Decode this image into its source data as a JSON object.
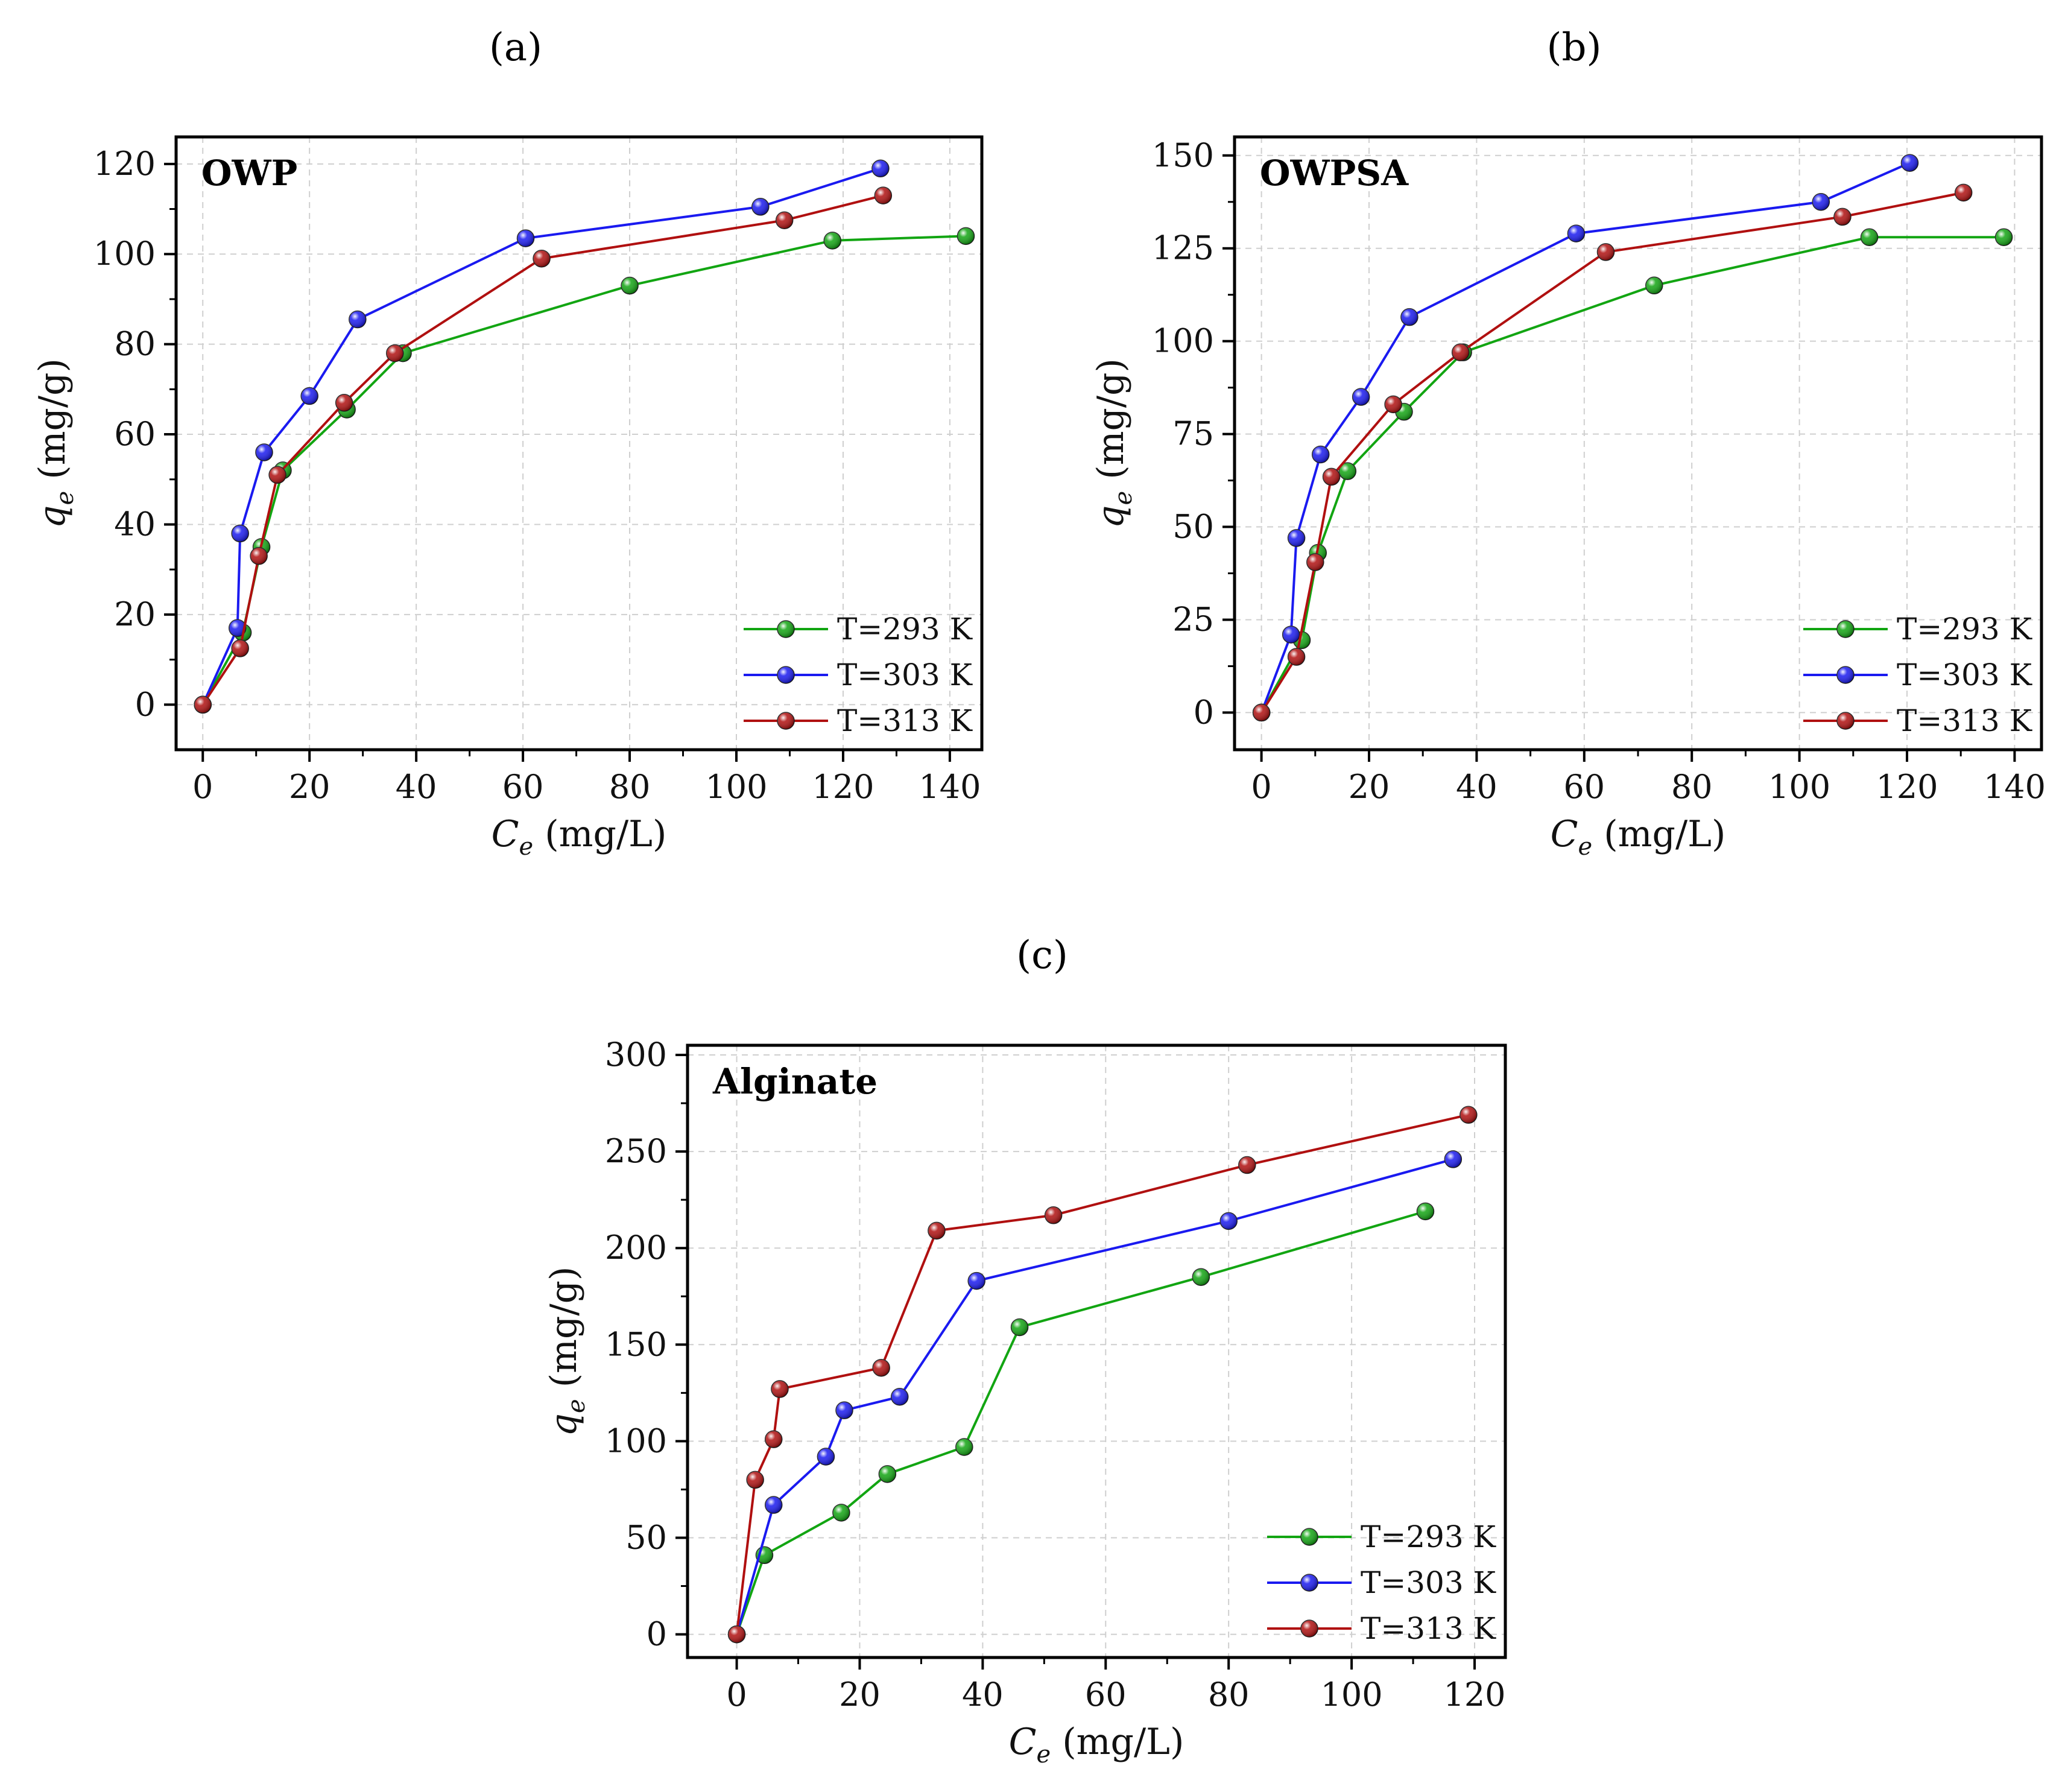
{
  "chart_data": [
    {
      "type": "line",
      "panel_label": "(a)",
      "title": "OWP",
      "xlabel_main": "C",
      "xlabel_sub": "e",
      "xlabel_unit": " (mg/L)",
      "ylabel_main": "q",
      "ylabel_sub": "e",
      "ylabel_unit": " (mg/g)",
      "xlim": [
        -5,
        146
      ],
      "ylim": [
        -10,
        126
      ],
      "xticks": [
        0,
        20,
        40,
        60,
        80,
        100,
        120,
        140
      ],
      "yticks": [
        0,
        20,
        40,
        60,
        80,
        100,
        120
      ],
      "legend_position": "bottom-right",
      "series": [
        {
          "name": "T=293 K",
          "color": "#12a512",
          "x": [
            0,
            7.5,
            11,
            15,
            27,
            37.5,
            80,
            118,
            143
          ],
          "y": [
            0,
            16,
            35,
            52,
            65.5,
            78,
            93,
            103,
            104
          ]
        },
        {
          "name": "T=303 K",
          "color": "#1a1af0",
          "x": [
            0,
            6.5,
            7,
            11.5,
            20,
            29,
            60.5,
            104.5,
            127
          ],
          "y": [
            0,
            17,
            38,
            56,
            68.5,
            85.5,
            103.5,
            110.5,
            119
          ]
        },
        {
          "name": "T=313 K",
          "color": "#b01010",
          "x": [
            0,
            7,
            10.5,
            14,
            26.5,
            36,
            63.5,
            109,
            127.5
          ],
          "y": [
            0,
            12.5,
            33,
            51,
            67,
            78,
            99,
            107.5,
            113
          ]
        }
      ]
    },
    {
      "type": "line",
      "panel_label": "(b)",
      "title": "OWPSA",
      "xlabel_main": "C",
      "xlabel_sub": "e",
      "xlabel_unit": " (mg/L)",
      "ylabel_main": "q",
      "ylabel_sub": "e",
      "ylabel_unit": " (mg/g)",
      "xlim": [
        -5,
        145
      ],
      "ylim": [
        -10,
        155
      ],
      "xticks": [
        0,
        20,
        40,
        60,
        80,
        100,
        120,
        140
      ],
      "yticks": [
        0,
        25,
        50,
        75,
        100,
        125,
        150
      ],
      "legend_position": "bottom-right",
      "series": [
        {
          "name": "T=293 K",
          "color": "#12a512",
          "x": [
            0,
            7.5,
            10.5,
            16,
            26.5,
            37.5,
            73,
            113,
            138
          ],
          "y": [
            0,
            19.5,
            43,
            65,
            81,
            97,
            115,
            128,
            128
          ]
        },
        {
          "name": "T=303 K",
          "color": "#1a1af0",
          "x": [
            0,
            5.5,
            6.5,
            11,
            18.5,
            27.5,
            58.5,
            104,
            120.5
          ],
          "y": [
            0,
            21,
            47,
            69.5,
            85,
            106.5,
            129,
            137.5,
            148
          ]
        },
        {
          "name": "T=313 K",
          "color": "#b01010",
          "x": [
            0,
            6.5,
            10,
            13,
            24.5,
            37,
            64,
            108,
            130.5
          ],
          "y": [
            0,
            15,
            40.5,
            63.5,
            83,
            97,
            124,
            133.5,
            140
          ]
        }
      ]
    },
    {
      "type": "line",
      "panel_label": "(c)",
      "title": "Alginate",
      "xlabel_main": "C",
      "xlabel_sub": "e",
      "xlabel_unit": " (mg/L)",
      "ylabel_main": "q",
      "ylabel_sub": "e",
      "ylabel_unit": " (mg/g)",
      "xlim": [
        -8,
        125
      ],
      "ylim": [
        -12,
        305
      ],
      "xticks": [
        0,
        20,
        40,
        60,
        80,
        100,
        120
      ],
      "yticks": [
        0,
        50,
        100,
        150,
        200,
        250,
        300
      ],
      "legend_position": "bottom-right",
      "series": [
        {
          "name": "T=293 K",
          "color": "#12a512",
          "x": [
            0,
            4.5,
            17,
            24.5,
            37,
            46,
            75.5,
            112
          ],
          "y": [
            0,
            41,
            63,
            83,
            97,
            159,
            185,
            219
          ]
        },
        {
          "name": "T=303 K",
          "color": "#1a1af0",
          "x": [
            0,
            6,
            14.5,
            17.5,
            26.5,
            39,
            80,
            116.5
          ],
          "y": [
            0,
            67,
            92,
            116,
            123,
            183,
            214,
            246
          ]
        },
        {
          "name": "T=313 K",
          "color": "#b01010",
          "x": [
            0,
            3,
            6,
            7,
            23.5,
            32.5,
            51.5,
            83,
            119
          ],
          "y": [
            0,
            80,
            101,
            127,
            138,
            209,
            217,
            243,
            269
          ]
        }
      ]
    }
  ]
}
